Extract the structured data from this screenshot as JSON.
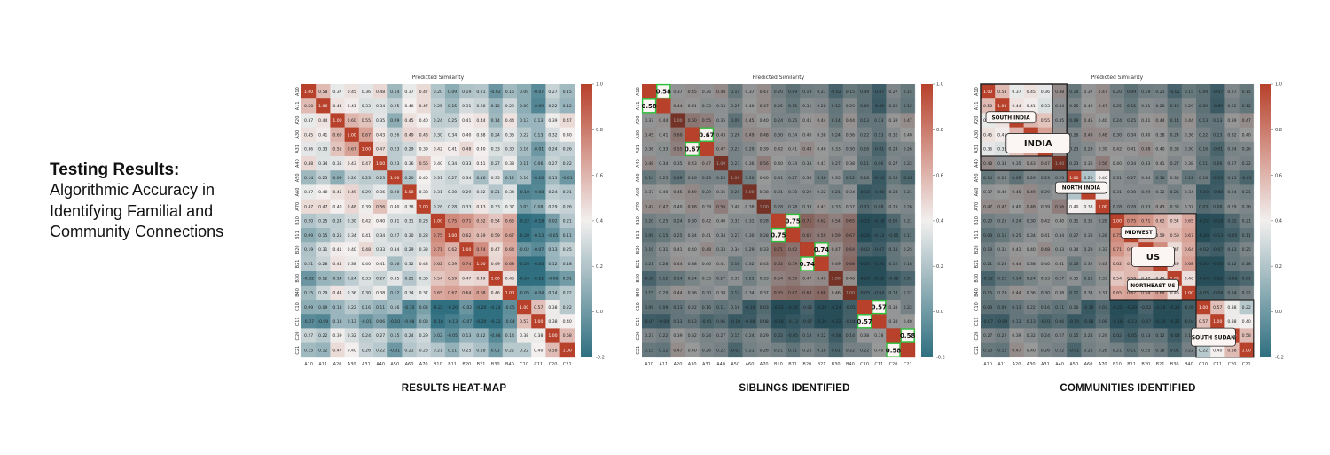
{
  "headline": {
    "title": "Testing Results:",
    "subtitle": "Algorithmic Accuracy in Identifying Familial and Community Connections"
  },
  "colors": {
    "high": "#b7412b",
    "mid": "#f2efee",
    "low": "#2f6f80"
  },
  "chart_data": [
    {
      "type": "heatmap",
      "title": "Predicted Similarity",
      "caption": "RESULTS HEAT-MAP",
      "labels": [
        "A10",
        "A11",
        "A20",
        "A30",
        "A31",
        "A40",
        "A50",
        "A60",
        "A70",
        "B10",
        "B11",
        "B20",
        "B21",
        "B30",
        "B40",
        "C10",
        "C11",
        "C20",
        "C21"
      ],
      "colorbar": {
        "min": -0.2,
        "max": 1.0,
        "ticks": [
          "1.0",
          "0.8",
          "0.6",
          "0.4",
          "0.2",
          "0.0",
          "-0.2"
        ]
      },
      "values": [
        [
          1.0,
          0.58,
          0.37,
          0.45,
          0.36,
          0.48,
          0.14,
          0.37,
          0.47,
          0.2,
          0.09,
          0.19,
          0.21,
          -0.02,
          0.15,
          0.09,
          -0.07,
          0.27,
          0.15
        ],
        [
          0.58,
          1.0,
          0.44,
          0.41,
          0.33,
          0.34,
          0.25,
          0.4,
          0.47,
          0.25,
          0.15,
          0.31,
          0.28,
          0.12,
          0.29,
          0.09,
          -0.09,
          0.22,
          0.12
        ],
        [
          0.37,
          0.44,
          1.0,
          0.6,
          0.55,
          0.35,
          0.09,
          0.45,
          0.4,
          0.24,
          0.25,
          0.41,
          0.44,
          0.14,
          0.44,
          0.13,
          0.13,
          0.39,
          0.47
        ],
        [
          0.45,
          0.41,
          0.6,
          1.0,
          0.67,
          0.43,
          0.26,
          0.49,
          0.48,
          0.3,
          0.34,
          0.4,
          0.38,
          0.24,
          0.36,
          0.22,
          0.13,
          0.32,
          0.4
        ],
        [
          0.36,
          0.33,
          0.55,
          0.67,
          1.0,
          0.47,
          0.23,
          0.29,
          0.39,
          0.42,
          0.41,
          0.48,
          0.4,
          0.33,
          0.3,
          0.16,
          -0.01,
          0.24,
          0.26
        ],
        [
          0.48,
          0.34,
          0.35,
          0.43,
          0.47,
          1.0,
          0.23,
          0.36,
          0.56,
          0.4,
          0.34,
          0.33,
          0.41,
          0.27,
          0.38,
          0.11,
          0.06,
          0.27,
          0.22
        ],
        [
          0.14,
          0.25,
          0.09,
          0.26,
          0.23,
          0.23,
          1.0,
          0.2,
          0.4,
          0.31,
          0.27,
          0.34,
          0.16,
          0.35,
          0.12,
          0.16,
          -0.1,
          0.15,
          -0.01
        ],
        [
          0.37,
          0.4,
          0.45,
          0.49,
          0.29,
          0.36,
          0.2,
          1.0,
          0.38,
          0.31,
          0.3,
          0.29,
          0.32,
          0.21,
          0.34,
          -0.1,
          -0.08,
          0.24,
          0.21
        ],
        [
          0.47,
          0.47,
          0.4,
          0.48,
          0.39,
          0.56,
          0.4,
          0.38,
          1.0,
          0.28,
          0.28,
          0.33,
          0.43,
          0.33,
          0.37,
          0.03,
          0.08,
          0.29,
          0.26
        ],
        [
          0.2,
          0.25,
          0.24,
          0.3,
          0.42,
          0.4,
          0.31,
          0.31,
          0.28,
          1.0,
          0.75,
          0.71,
          0.62,
          0.54,
          0.65,
          -0.22,
          -0.18,
          0.02,
          0.21
        ],
        [
          0.09,
          0.15,
          0.25,
          0.34,
          0.41,
          0.34,
          0.27,
          0.3,
          0.28,
          0.75,
          1.0,
          0.62,
          0.59,
          0.59,
          0.67,
          -0.2,
          -0.13,
          -0.05,
          0.11
        ],
        [
          0.19,
          0.31,
          0.41,
          0.4,
          0.48,
          0.33,
          0.34,
          0.29,
          0.33,
          0.71,
          0.62,
          1.0,
          0.74,
          0.47,
          0.64,
          -0.02,
          -0.07,
          0.13,
          0.25
        ],
        [
          0.21,
          0.28,
          0.44,
          0.38,
          0.4,
          0.41,
          0.16,
          0.32,
          0.43,
          0.62,
          0.59,
          0.74,
          1.0,
          0.49,
          0.68,
          -0.2,
          -0.2,
          0.12,
          0.18
        ],
        [
          -0.02,
          0.12,
          0.14,
          0.24,
          0.33,
          0.27,
          0.35,
          0.21,
          0.33,
          0.54,
          0.59,
          0.47,
          0.49,
          1.0,
          0.46,
          -0.24,
          -0.22,
          -0.08,
          0.01
        ],
        [
          0.15,
          0.29,
          0.44,
          0.36,
          0.3,
          0.38,
          0.12,
          0.34,
          0.37,
          0.65,
          0.67,
          0.64,
          0.68,
          0.46,
          1.0,
          -0.05,
          -0.04,
          0.14,
          0.22
        ],
        [
          0.09,
          0.09,
          0.13,
          0.22,
          0.16,
          0.11,
          0.16,
          -0.1,
          0.03,
          -0.22,
          -0.2,
          -0.02,
          -0.2,
          -0.24,
          -0.05,
          1.0,
          0.57,
          0.38,
          0.22
        ],
        [
          -0.07,
          -0.09,
          0.13,
          0.13,
          -0.01,
          0.06,
          -0.1,
          -0.08,
          0.08,
          -0.18,
          -0.13,
          -0.07,
          -0.2,
          -0.22,
          -0.04,
          0.57,
          1.0,
          0.38,
          0.4
        ],
        [
          0.27,
          0.22,
          0.39,
          0.32,
          0.24,
          0.27,
          0.15,
          0.24,
          0.29,
          0.02,
          -0.05,
          0.13,
          0.12,
          -0.08,
          0.14,
          0.38,
          0.38,
          1.0,
          0.58
        ],
        [
          0.15,
          0.12,
          0.47,
          0.4,
          0.26,
          0.22,
          -0.01,
          0.21,
          0.26,
          0.21,
          0.11,
          0.25,
          0.18,
          0.01,
          0.22,
          0.22,
          0.4,
          0.58,
          1.0
        ]
      ]
    },
    {
      "type": "heatmap",
      "title": "Predicted Similarity",
      "caption": "SIBLINGS IDENTIFIED",
      "source": "same values as panel 1",
      "highlighted_pairs": [
        {
          "row": "A10",
          "col": "A11",
          "value": "0.58"
        },
        {
          "row": "A30",
          "col": "A31",
          "value": "0.67"
        },
        {
          "row": "B10",
          "col": "B11",
          "value": "0.75"
        },
        {
          "row": "B20",
          "col": "B21",
          "value": "0.74"
        },
        {
          "row": "C10",
          "col": "C11",
          "value": "0.57"
        },
        {
          "row": "C20",
          "col": "C21",
          "value": "0.58"
        }
      ]
    },
    {
      "type": "heatmap",
      "title": "Predicted Similarity",
      "caption": "COMMUNITIES IDENTIFIED",
      "source": "same values as panel 1",
      "communities": [
        {
          "name": "INDIA",
          "members": [
            "A10",
            "A11",
            "A20",
            "A30",
            "A31",
            "A40"
          ],
          "sub": [
            {
              "name": "SOUTH INDIA",
              "members": [
                "A10",
                "A11",
                "A20",
                "A30",
                "A31"
              ]
            },
            {
              "name": "NORTH INDIA",
              "members": [
                "A50",
                "A60",
                "A70"
              ]
            }
          ]
        },
        {
          "name": "US",
          "members": [
            "B10",
            "B11",
            "B20",
            "B21",
            "B30",
            "B40"
          ],
          "sub": [
            {
              "name": "MIDWEST",
              "members": [
                "B10",
                "B11",
                "B20",
                "B21"
              ]
            },
            {
              "name": "NORTHEAST US",
              "members": [
                "B30",
                "B40"
              ]
            }
          ]
        },
        {
          "name": "SOUTH SUDAN",
          "members": [
            "C10",
            "C11",
            "C20",
            "C21"
          ],
          "sub": []
        }
      ]
    }
  ]
}
